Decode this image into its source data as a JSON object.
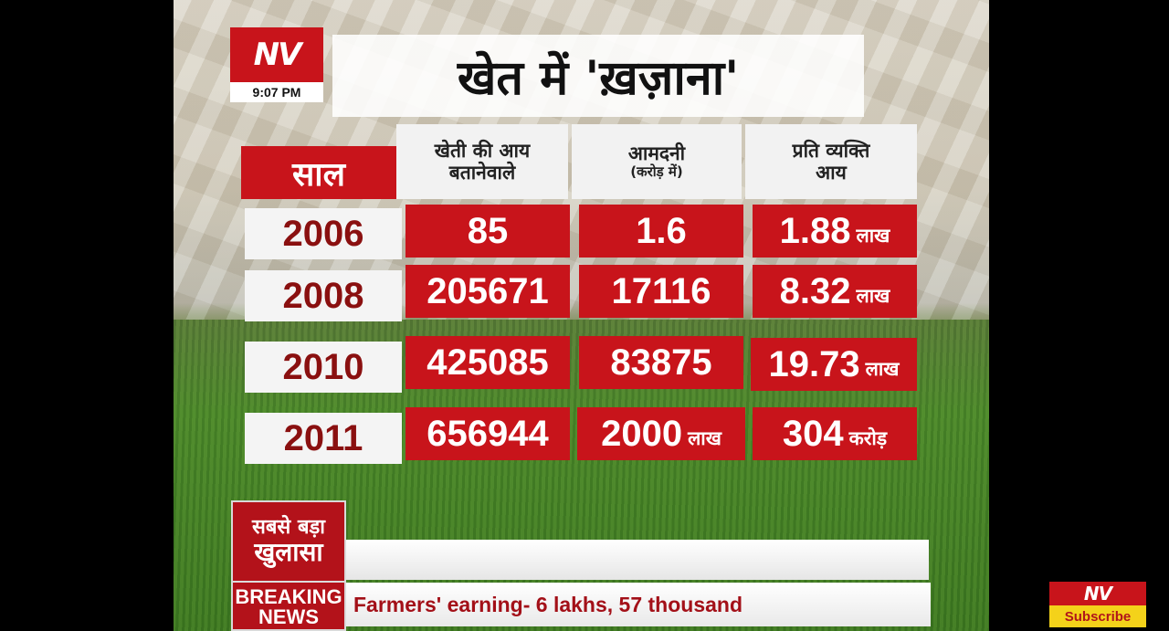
{
  "channel": {
    "logo_text": "NV",
    "time": "9:07 PM"
  },
  "title": "खेत में 'ख़ज़ाना'",
  "table": {
    "year_header": "साल",
    "col1_header_line1": "खेती की आय",
    "col1_header_line2": "बतानेवाले",
    "col2_header_line1": "आमदनी",
    "col2_header_line2": "(करोड़ में)",
    "col3_header_line1": "प्रति व्यक्ति",
    "col3_header_line2": "आय",
    "rows": [
      {
        "year": "2006",
        "earners": "85",
        "income": "1.6",
        "income_unit": "",
        "per_capita": "1.88",
        "per_capita_unit": "लाख"
      },
      {
        "year": "2008",
        "earners": "205671",
        "income": "17116",
        "income_unit": "",
        "per_capita": "8.32",
        "per_capita_unit": "लाख"
      },
      {
        "year": "2010",
        "earners": "425085",
        "income": "83875",
        "income_unit": "",
        "per_capita": "19.73",
        "per_capita_unit": "लाख"
      },
      {
        "year": "2011",
        "earners": "656944",
        "income": "2000",
        "income_unit": "लाख",
        "per_capita": "304",
        "per_capita_unit": "करोड़"
      }
    ]
  },
  "ticker": {
    "badge_line1": "सबसे बड़ा",
    "badge_line2": "खुलासा",
    "breaking_line1": "BREAKING",
    "breaking_line2": "NEWS",
    "headline": "Farmers' earning- 6 lakhs, 57 thousand"
  },
  "subscribe": {
    "logo_text": "NV",
    "label": "Subscribe"
  },
  "colors": {
    "accent_red": "#c8141b",
    "subscribe_yellow": "#f4d21a"
  }
}
